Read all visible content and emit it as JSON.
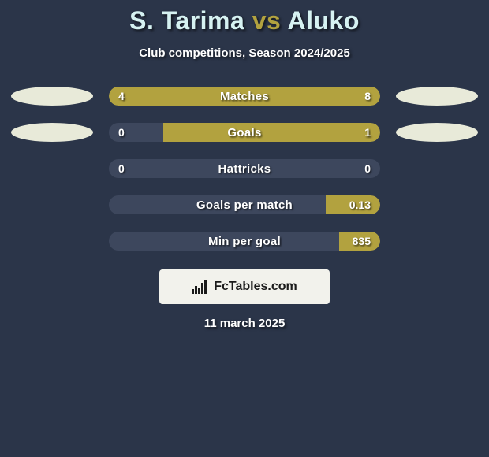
{
  "background_color": "#2b3549",
  "title": {
    "parts": [
      "S. Tarima",
      " vs ",
      "Aluko"
    ],
    "colors": [
      "#d6f2f2",
      "#b2a23f",
      "#d6f2f2"
    ]
  },
  "subtitle": "Club competitions, Season 2024/2025",
  "subtitle_color": "#ffffff",
  "player_left": {
    "badge_color": "#e8ead9"
  },
  "player_right": {
    "badge_color": "#e8ead9"
  },
  "bar_track_color": "#3d475d",
  "bar_left_color": "#b2a23f",
  "bar_right_color": "#b2a23f",
  "rows": [
    {
      "label": "Matches",
      "left": "4",
      "right": "8",
      "left_pct": 33.3,
      "right_pct": 66.7,
      "show_badges": true
    },
    {
      "label": "Goals",
      "left": "0",
      "right": "1",
      "left_pct": 0,
      "right_pct": 80.0,
      "show_badges": true
    },
    {
      "label": "Hattricks",
      "left": "0",
      "right": "0",
      "left_pct": 0,
      "right_pct": 0,
      "show_badges": false
    },
    {
      "label": "Goals per match",
      "left": "",
      "right": "0.13",
      "left_pct": 0,
      "right_pct": 20.0,
      "show_badges": false
    },
    {
      "label": "Min per goal",
      "left": "",
      "right": "835",
      "left_pct": 0,
      "right_pct": 15.0,
      "show_badges": false
    }
  ],
  "footer": {
    "brand_text": "FcTables.com",
    "card_bg": "#f2f2ec",
    "text_color": "#1a1a1a",
    "icon_color": "#1a1a1a"
  },
  "date": "11 march 2025",
  "fonts": {
    "title_size": 32,
    "subtitle_size": 15,
    "bar_label_size": 15,
    "bar_value_size": 14,
    "footer_size": 16,
    "date_size": 15
  }
}
